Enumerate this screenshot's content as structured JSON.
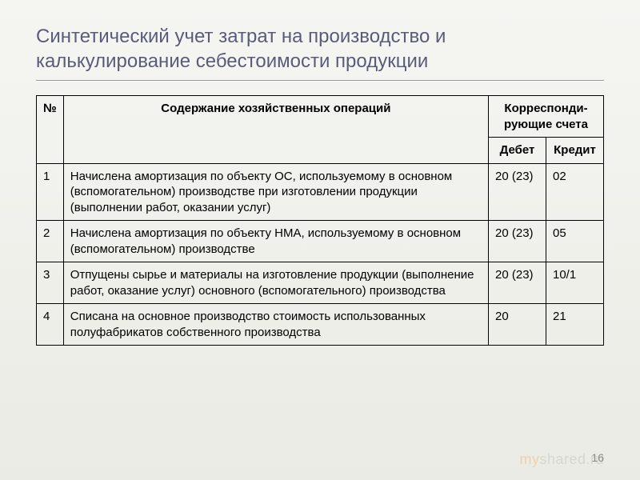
{
  "title": "Синтетический учет затрат на производство и калькулирование себестоимости продукции",
  "headers": {
    "num": "№",
    "desc": "Содержание хозяйственных операций",
    "group": "Корреспонди- рующие счета",
    "debit": "Дебет",
    "credit": "Кредит"
  },
  "rows": [
    {
      "num": "1",
      "desc": "Начислена амортизация по объекту ОС, используемому в основном (вспомогательном) производстве при изготовлении продукции (выполнении работ, оказании услуг)",
      "debit": "20 (23)",
      "credit": "02"
    },
    {
      "num": "2",
      "desc": "Начислена амортизация по объекту НМА, используемому в основном (вспомогательном) производстве",
      "debit": "20 (23)",
      "credit": "05"
    },
    {
      "num": "3",
      "desc": "Отпущены сырье и материалы на изготовление продукции (выполнение работ, оказание услуг) основного (вспомогательного) производства",
      "debit": "20 (23)",
      "credit": "10/1"
    },
    {
      "num": "4",
      "desc": "Списана на основное производство стоимость использованных полуфабрикатов собственного производства",
      "debit": "20",
      "credit": "21"
    }
  ],
  "page_number": "16",
  "watermark_my": "my",
  "watermark_shared": "shared.ru",
  "styling": {
    "background_gradient": [
      "#f5f5f2",
      "#ebebe5"
    ],
    "title_color": "#5a5a7a",
    "title_fontsize": 24,
    "body_fontsize": 15,
    "border_color": "#000000",
    "text_color": "#000000",
    "col_widths": {
      "num": 32,
      "debit": 72,
      "credit": 72
    }
  }
}
